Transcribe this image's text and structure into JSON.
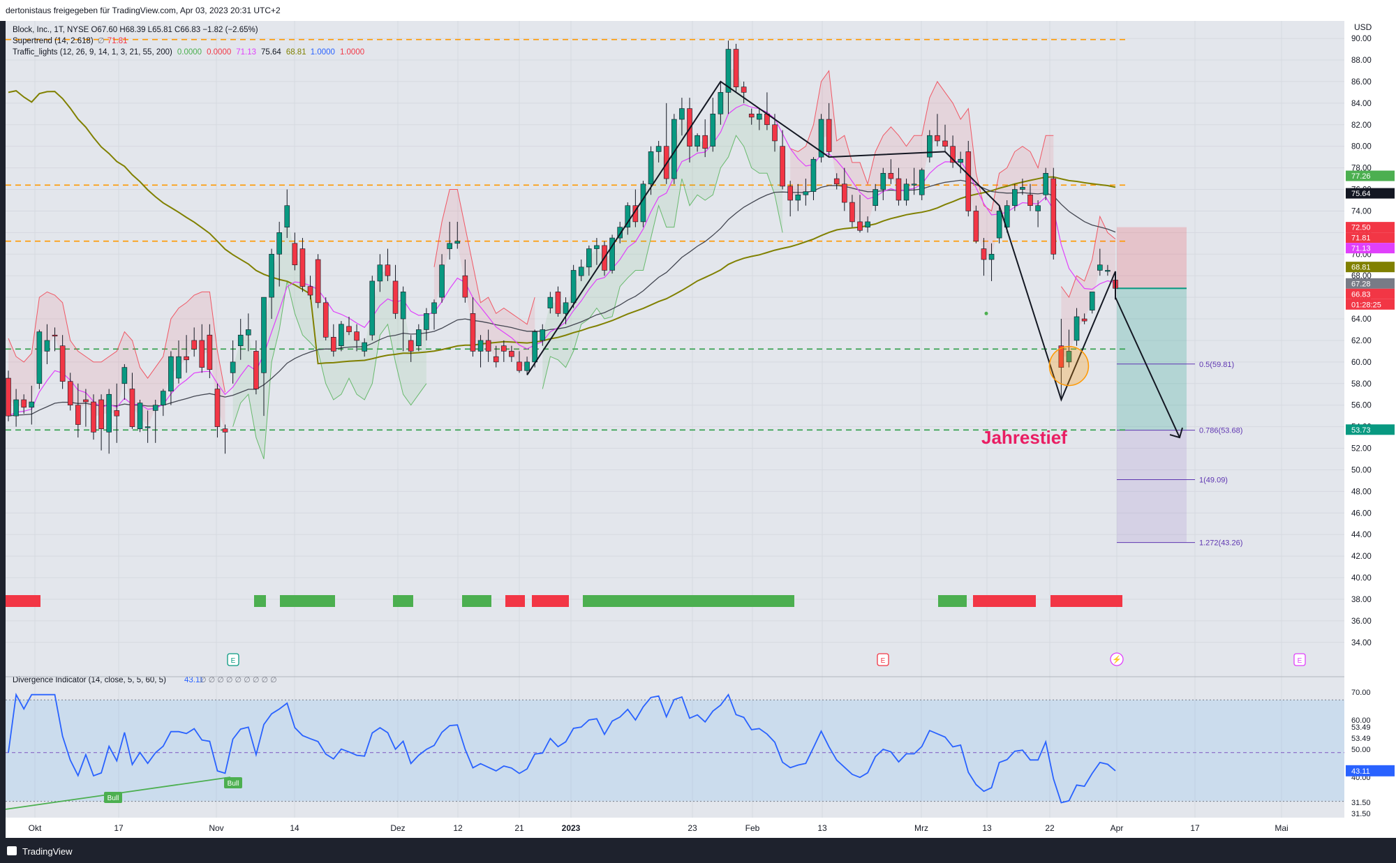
{
  "header": {
    "publisher": "dertonistaus freigegeben für TradingView.com, Apr 03, 2023 20:31 UTC+2",
    "symbol_line": "Block, Inc., 1T, NYSE  O67.60  H68.39  L65.81  C66.83  −1.82 (−2.65%)",
    "supertrend_label": "Supertrend (14, 2.618)",
    "supertrend_value": "71.81",
    "traffic_label": "Traffic_lights (12, 26, 9, 14, 1, 3, 21, 55, 200)",
    "traffic_values": [
      {
        "text": "0.0000",
        "color": "#4caf50"
      },
      {
        "text": "0.0000",
        "color": "#f23645"
      },
      {
        "text": "71.13",
        "color": "#e040fb"
      },
      {
        "text": "75.64",
        "color": "#131722"
      },
      {
        "text": "68.81",
        "color": "#808000"
      },
      {
        "text": "1.0000",
        "color": "#2962ff"
      },
      {
        "text": "1.0000",
        "color": "#f23645"
      }
    ]
  },
  "currency": "USD",
  "annotation": "Jahrestief",
  "footer": {
    "brand": "TradingView"
  },
  "colors": {
    "up": "#089981",
    "down": "#f23645",
    "ema_pink": "#e040fb",
    "ema_dark": "#434651",
    "sma_olive": "#808000",
    "orange": "#ff9800",
    "green_dash": "#2e9e48"
  },
  "chart_data": {
    "type": "candlestick",
    "y_axis_ticks": [
      "34.00",
      "36.00",
      "38.00",
      "40.00",
      "42.00",
      "44.00",
      "46.00",
      "48.00",
      "50.00",
      "52.00",
      "54.00",
      "56.00",
      "58.00",
      "60.00",
      "62.00",
      "64.00",
      "66.00",
      "68.00",
      "70.00",
      "72.00",
      "74.00",
      "76.00",
      "78.00",
      "80.00",
      "82.00",
      "84.00",
      "86.00",
      "88.00",
      "90.00"
    ],
    "ylim": [
      32.5,
      90.2
    ],
    "x_labels": [
      "Okt",
      "17",
      "Nov",
      "14",
      "Dez",
      "12",
      "21",
      "2023",
      "23",
      "Feb",
      "13",
      "Mrz",
      "13",
      "22",
      "Apr",
      "17",
      "Mai"
    ],
    "price_badges": [
      {
        "text": "77.26",
        "value": 77.26,
        "bg": "#4caf50",
        "fg": "#ffffff"
      },
      {
        "text": "75.64",
        "value": 75.64,
        "bg": "#131722",
        "fg": "#ffffff"
      },
      {
        "text": "72.50",
        "value": 72.5,
        "bg": "#f23645",
        "fg": "#ffffff"
      },
      {
        "text": "71.81",
        "value": 71.81,
        "bg": "#f23645",
        "fg": "#ffffff"
      },
      {
        "text": "71.13",
        "value": 71.13,
        "bg": "#e040fb",
        "fg": "#ffffff"
      },
      {
        "text": "68.81",
        "value": 68.81,
        "bg": "#808000",
        "fg": "#ffffff"
      },
      {
        "text": "67.28",
        "value": 67.28,
        "bg": "#787b86",
        "fg": "#ffffff"
      },
      {
        "text": "66.83",
        "value": 66.83,
        "bg": "#f23645",
        "fg": "#ffffff"
      },
      {
        "text": "01:28:25",
        "value": 65.8,
        "bg": "#f23645",
        "fg": "#ffffff"
      },
      {
        "text": "53.73",
        "value": 53.73,
        "bg": "#089981",
        "fg": "#ffffff"
      }
    ],
    "horizontal_levels": [
      {
        "value": 89.9,
        "color": "#ff9800"
      },
      {
        "value": 76.4,
        "color": "#ff9800"
      },
      {
        "value": 71.2,
        "color": "#ff9800"
      },
      {
        "value": 61.2,
        "color": "#2e9e48"
      },
      {
        "value": 53.7,
        "color": "#2e9e48"
      }
    ],
    "fib_levels": [
      {
        "label": "0.5(59.81)",
        "value": 59.81
      },
      {
        "label": "0.786(53.68)",
        "value": 53.68
      },
      {
        "label": "1(49.09)",
        "value": 49.09
      },
      {
        "label": "1.272(43.26)",
        "value": 43.26
      }
    ],
    "position_tool": {
      "entry": 66.83,
      "stop": 72.5,
      "target": 43.26
    },
    "candles": [
      [
        58.5,
        59.2,
        54.5,
        55.0
      ],
      [
        55.0,
        57.5,
        54.0,
        56.5
      ],
      [
        56.5,
        57.0,
        55.2,
        55.8
      ],
      [
        55.8,
        57.8,
        54.2,
        56.3
      ],
      [
        58.0,
        63.0,
        57.5,
        62.8
      ],
      [
        61.0,
        63.5,
        59.8,
        62.0
      ],
      [
        62.5,
        63.2,
        61.0,
        62.4
      ],
      [
        61.5,
        62.5,
        57.5,
        58.2
      ],
      [
        58.2,
        59.0,
        55.5,
        56.0
      ],
      [
        56.0,
        58.0,
        53.0,
        54.2
      ],
      [
        56.5,
        57.5,
        54.0,
        56.3
      ],
      [
        56.3,
        57.0,
        52.8,
        53.5
      ],
      [
        56.5,
        57.0,
        51.8,
        53.8
      ],
      [
        53.5,
        57.5,
        51.5,
        57.0
      ],
      [
        55.5,
        58.0,
        52.5,
        55.0
      ],
      [
        58.0,
        59.8,
        56.5,
        59.5
      ],
      [
        57.5,
        59.0,
        53.8,
        54.0
      ],
      [
        53.8,
        56.5,
        53.5,
        56.2
      ],
      [
        54.0,
        55.5,
        52.5,
        54.0
      ],
      [
        55.5,
        56.5,
        52.5,
        56.0
      ],
      [
        56.0,
        57.5,
        55.0,
        57.3
      ],
      [
        57.3,
        61.0,
        56.0,
        60.5
      ],
      [
        58.5,
        62.0,
        58.0,
        60.5
      ],
      [
        60.5,
        62.5,
        59.0,
        60.2
      ],
      [
        62.0,
        63.2,
        60.5,
        61.2
      ],
      [
        62.0,
        63.5,
        59.0,
        59.5
      ],
      [
        62.5,
        63.5,
        58.5,
        59.3
      ],
      [
        57.5,
        58.0,
        53.0,
        54.0
      ],
      [
        53.8,
        54.2,
        51.5,
        53.5
      ],
      [
        59.0,
        62.0,
        58.0,
        60.0
      ],
      [
        61.5,
        64.0,
        60.2,
        62.5
      ],
      [
        62.5,
        64.5,
        61.0,
        63.0
      ],
      [
        61.0,
        62.0,
        57.0,
        57.5
      ],
      [
        59.0,
        66.0,
        55.0,
        66.0
      ],
      [
        66.0,
        70.5,
        64.0,
        70.0
      ],
      [
        70.0,
        73.0,
        67.0,
        72.0
      ],
      [
        72.5,
        76.0,
        71.5,
        74.5
      ],
      [
        71.0,
        72.0,
        68.5,
        69.0
      ],
      [
        70.5,
        71.5,
        66.5,
        67.0
      ],
      [
        67.0,
        68.0,
        65.8,
        66.2
      ],
      [
        69.5,
        70.0,
        65.0,
        65.5
      ],
      [
        65.5,
        66.0,
        62.0,
        62.3
      ],
      [
        62.3,
        63.5,
        60.5,
        61.0
      ],
      [
        61.5,
        63.8,
        61.0,
        63.5
      ],
      [
        63.3,
        64.2,
        62.5,
        62.8
      ],
      [
        62.8,
        63.5,
        61.0,
        62.0
      ],
      [
        61.0,
        62.2,
        60.5,
        61.8
      ],
      [
        62.5,
        68.0,
        62.0,
        67.5
      ],
      [
        67.5,
        70.0,
        66.5,
        69.0
      ],
      [
        69.0,
        70.5,
        67.5,
        68.0
      ],
      [
        67.5,
        69.0,
        64.0,
        64.5
      ],
      [
        64.0,
        67.0,
        61.0,
        66.5
      ],
      [
        62.0,
        62.5,
        60.0,
        61.0
      ],
      [
        61.5,
        63.5,
        61.0,
        63.0
      ],
      [
        63.0,
        65.0,
        62.0,
        64.5
      ],
      [
        64.5,
        65.8,
        63.0,
        65.5
      ],
      [
        66.0,
        70.0,
        65.5,
        69.0
      ],
      [
        70.5,
        73.0,
        69.5,
        71.0
      ],
      [
        71.0,
        73.0,
        70.5,
        71.2
      ],
      [
        68.0,
        69.5,
        65.5,
        66.0
      ],
      [
        64.5,
        66.0,
        60.5,
        61.0
      ],
      [
        61.0,
        62.5,
        59.5,
        62.0
      ],
      [
        62.0,
        63.0,
        60.0,
        61.0
      ],
      [
        60.5,
        61.5,
        59.5,
        60.0
      ],
      [
        61.5,
        62.0,
        60.0,
        61.0
      ],
      [
        61.0,
        61.5,
        60.0,
        60.5
      ],
      [
        60.0,
        61.0,
        59.0,
        59.2
      ],
      [
        59.2,
        60.5,
        58.8,
        60.0
      ],
      [
        60.0,
        63.0,
        59.5,
        62.8
      ],
      [
        62.0,
        63.5,
        61.5,
        63.0
      ],
      [
        65.0,
        66.5,
        64.5,
        66.0
      ],
      [
        66.5,
        67.0,
        64.2,
        64.5
      ],
      [
        64.5,
        66.0,
        63.5,
        65.5
      ],
      [
        65.5,
        69.0,
        65.0,
        68.5
      ],
      [
        68.0,
        69.5,
        67.5,
        68.8
      ],
      [
        68.8,
        70.8,
        68.0,
        70.5
      ],
      [
        70.5,
        71.5,
        69.0,
        70.8
      ],
      [
        70.8,
        71.2,
        68.0,
        68.5
      ],
      [
        68.5,
        71.8,
        68.2,
        71.5
      ],
      [
        71.5,
        73.0,
        71.0,
        72.5
      ],
      [
        72.5,
        74.8,
        71.8,
        74.5
      ],
      [
        74.5,
        76.0,
        72.5,
        73.0
      ],
      [
        73.0,
        76.8,
        72.5,
        76.5
      ],
      [
        76.5,
        80.0,
        75.5,
        79.5
      ],
      [
        79.5,
        80.5,
        78.5,
        80.0
      ],
      [
        80.0,
        84.0,
        76.5,
        77.0
      ],
      [
        77.0,
        83.0,
        76.5,
        82.5
      ],
      [
        82.5,
        84.5,
        81.0,
        83.5
      ],
      [
        83.5,
        84.5,
        78.5,
        80.0
      ],
      [
        80.0,
        81.2,
        79.5,
        81.0
      ],
      [
        81.0,
        82.5,
        79.0,
        79.8
      ],
      [
        80.0,
        84.5,
        79.5,
        83.0
      ],
      [
        83.0,
        86.0,
        82.0,
        85.0
      ],
      [
        85.0,
        89.8,
        83.0,
        89.0
      ],
      [
        89.0,
        89.5,
        85.0,
        85.5
      ],
      [
        85.5,
        86.0,
        84.0,
        85.0
      ],
      [
        83.0,
        83.5,
        82.0,
        82.7
      ],
      [
        82.5,
        83.5,
        81.5,
        83.0
      ],
      [
        83.0,
        85.0,
        81.5,
        82.0
      ],
      [
        82.0,
        83.0,
        79.5,
        80.5
      ],
      [
        80.0,
        81.5,
        76.0,
        76.3
      ],
      [
        76.3,
        76.8,
        73.5,
        75.0
      ],
      [
        75.0,
        76.5,
        74.0,
        75.5
      ],
      [
        75.5,
        77.0,
        74.5,
        75.8
      ],
      [
        75.8,
        79.0,
        75.0,
        78.8
      ],
      [
        79.0,
        83.0,
        78.5,
        82.5
      ],
      [
        82.5,
        84.0,
        79.0,
        79.5
      ],
      [
        77.0,
        77.5,
        76.0,
        76.5
      ],
      [
        76.5,
        78.0,
        74.0,
        74.8
      ],
      [
        74.8,
        75.5,
        72.5,
        73.0
      ],
      [
        73.0,
        75.5,
        72.0,
        72.2
      ],
      [
        72.5,
        73.5,
        72.0,
        73.0
      ],
      [
        74.5,
        76.5,
        74.0,
        76.0
      ],
      [
        76.0,
        78.0,
        75.0,
        77.5
      ],
      [
        77.5,
        78.8,
        76.5,
        77.0
      ],
      [
        77.0,
        78.0,
        74.5,
        75.0
      ],
      [
        75.0,
        77.0,
        74.5,
        76.5
      ],
      [
        76.5,
        78.0,
        75.5,
        76.5
      ],
      [
        75.5,
        78.0,
        75.0,
        77.8
      ],
      [
        79.0,
        81.5,
        78.5,
        81.0
      ],
      [
        81.0,
        83.0,
        80.0,
        80.5
      ],
      [
        80.5,
        82.0,
        79.5,
        80.0
      ],
      [
        80.0,
        81.0,
        78.0,
        78.5
      ],
      [
        78.5,
        79.5,
        77.5,
        78.8
      ],
      [
        79.5,
        80.5,
        73.5,
        74.0
      ],
      [
        74.0,
        74.5,
        71.0,
        71.2
      ],
      [
        70.5,
        71.5,
        68.0,
        69.5
      ],
      [
        69.5,
        71.0,
        67.5,
        70.0
      ],
      [
        71.5,
        74.5,
        71.0,
        74.0
      ],
      [
        72.5,
        75.0,
        72.0,
        74.5
      ],
      [
        74.5,
        76.5,
        74.0,
        76.0
      ],
      [
        76.0,
        77.0,
        75.5,
        76.2
      ],
      [
        75.5,
        76.5,
        74.0,
        74.5
      ],
      [
        74.0,
        75.0,
        72.5,
        74.5
      ],
      [
        75.5,
        78.0,
        75.0,
        77.5
      ],
      [
        77.0,
        78.0,
        69.5,
        70.0
      ],
      [
        61.5,
        64.0,
        56.5,
        59.5
      ],
      [
        60.0,
        63.0,
        59.5,
        61.0
      ],
      [
        62.0,
        65.0,
        61.5,
        64.2
      ],
      [
        64.0,
        64.5,
        63.5,
        63.8
      ],
      [
        64.8,
        66.5,
        64.5,
        66.5
      ],
      [
        68.5,
        70.5,
        68.0,
        69.0
      ],
      [
        68.5,
        69.0,
        68.0,
        68.5
      ],
      [
        67.6,
        68.4,
        65.8,
        66.83
      ]
    ],
    "series": [
      {
        "name": "Supertrend",
        "values": []
      },
      {
        "name": "Divergence Indicator (14, close, 5, 5, 60, 5)",
        "values": [
          43.11
        ]
      }
    ],
    "oscillator": {
      "label": "Divergence Indicator (14, close, 5, 5, 60, 5)",
      "value": "43.11",
      "ticks": [
        "70.00",
        "60.00",
        "53.49",
        "53.49",
        "50.00",
        "40.00",
        "31.50",
        "31.50"
      ],
      "ylim": [
        28.5,
        73.5
      ],
      "band": [
        31.5,
        70.0
      ],
      "midline": 50.0,
      "bull_labels": [
        "Bull",
        "Bull"
      ]
    },
    "event_markers": [
      "E",
      "E",
      "E"
    ]
  }
}
